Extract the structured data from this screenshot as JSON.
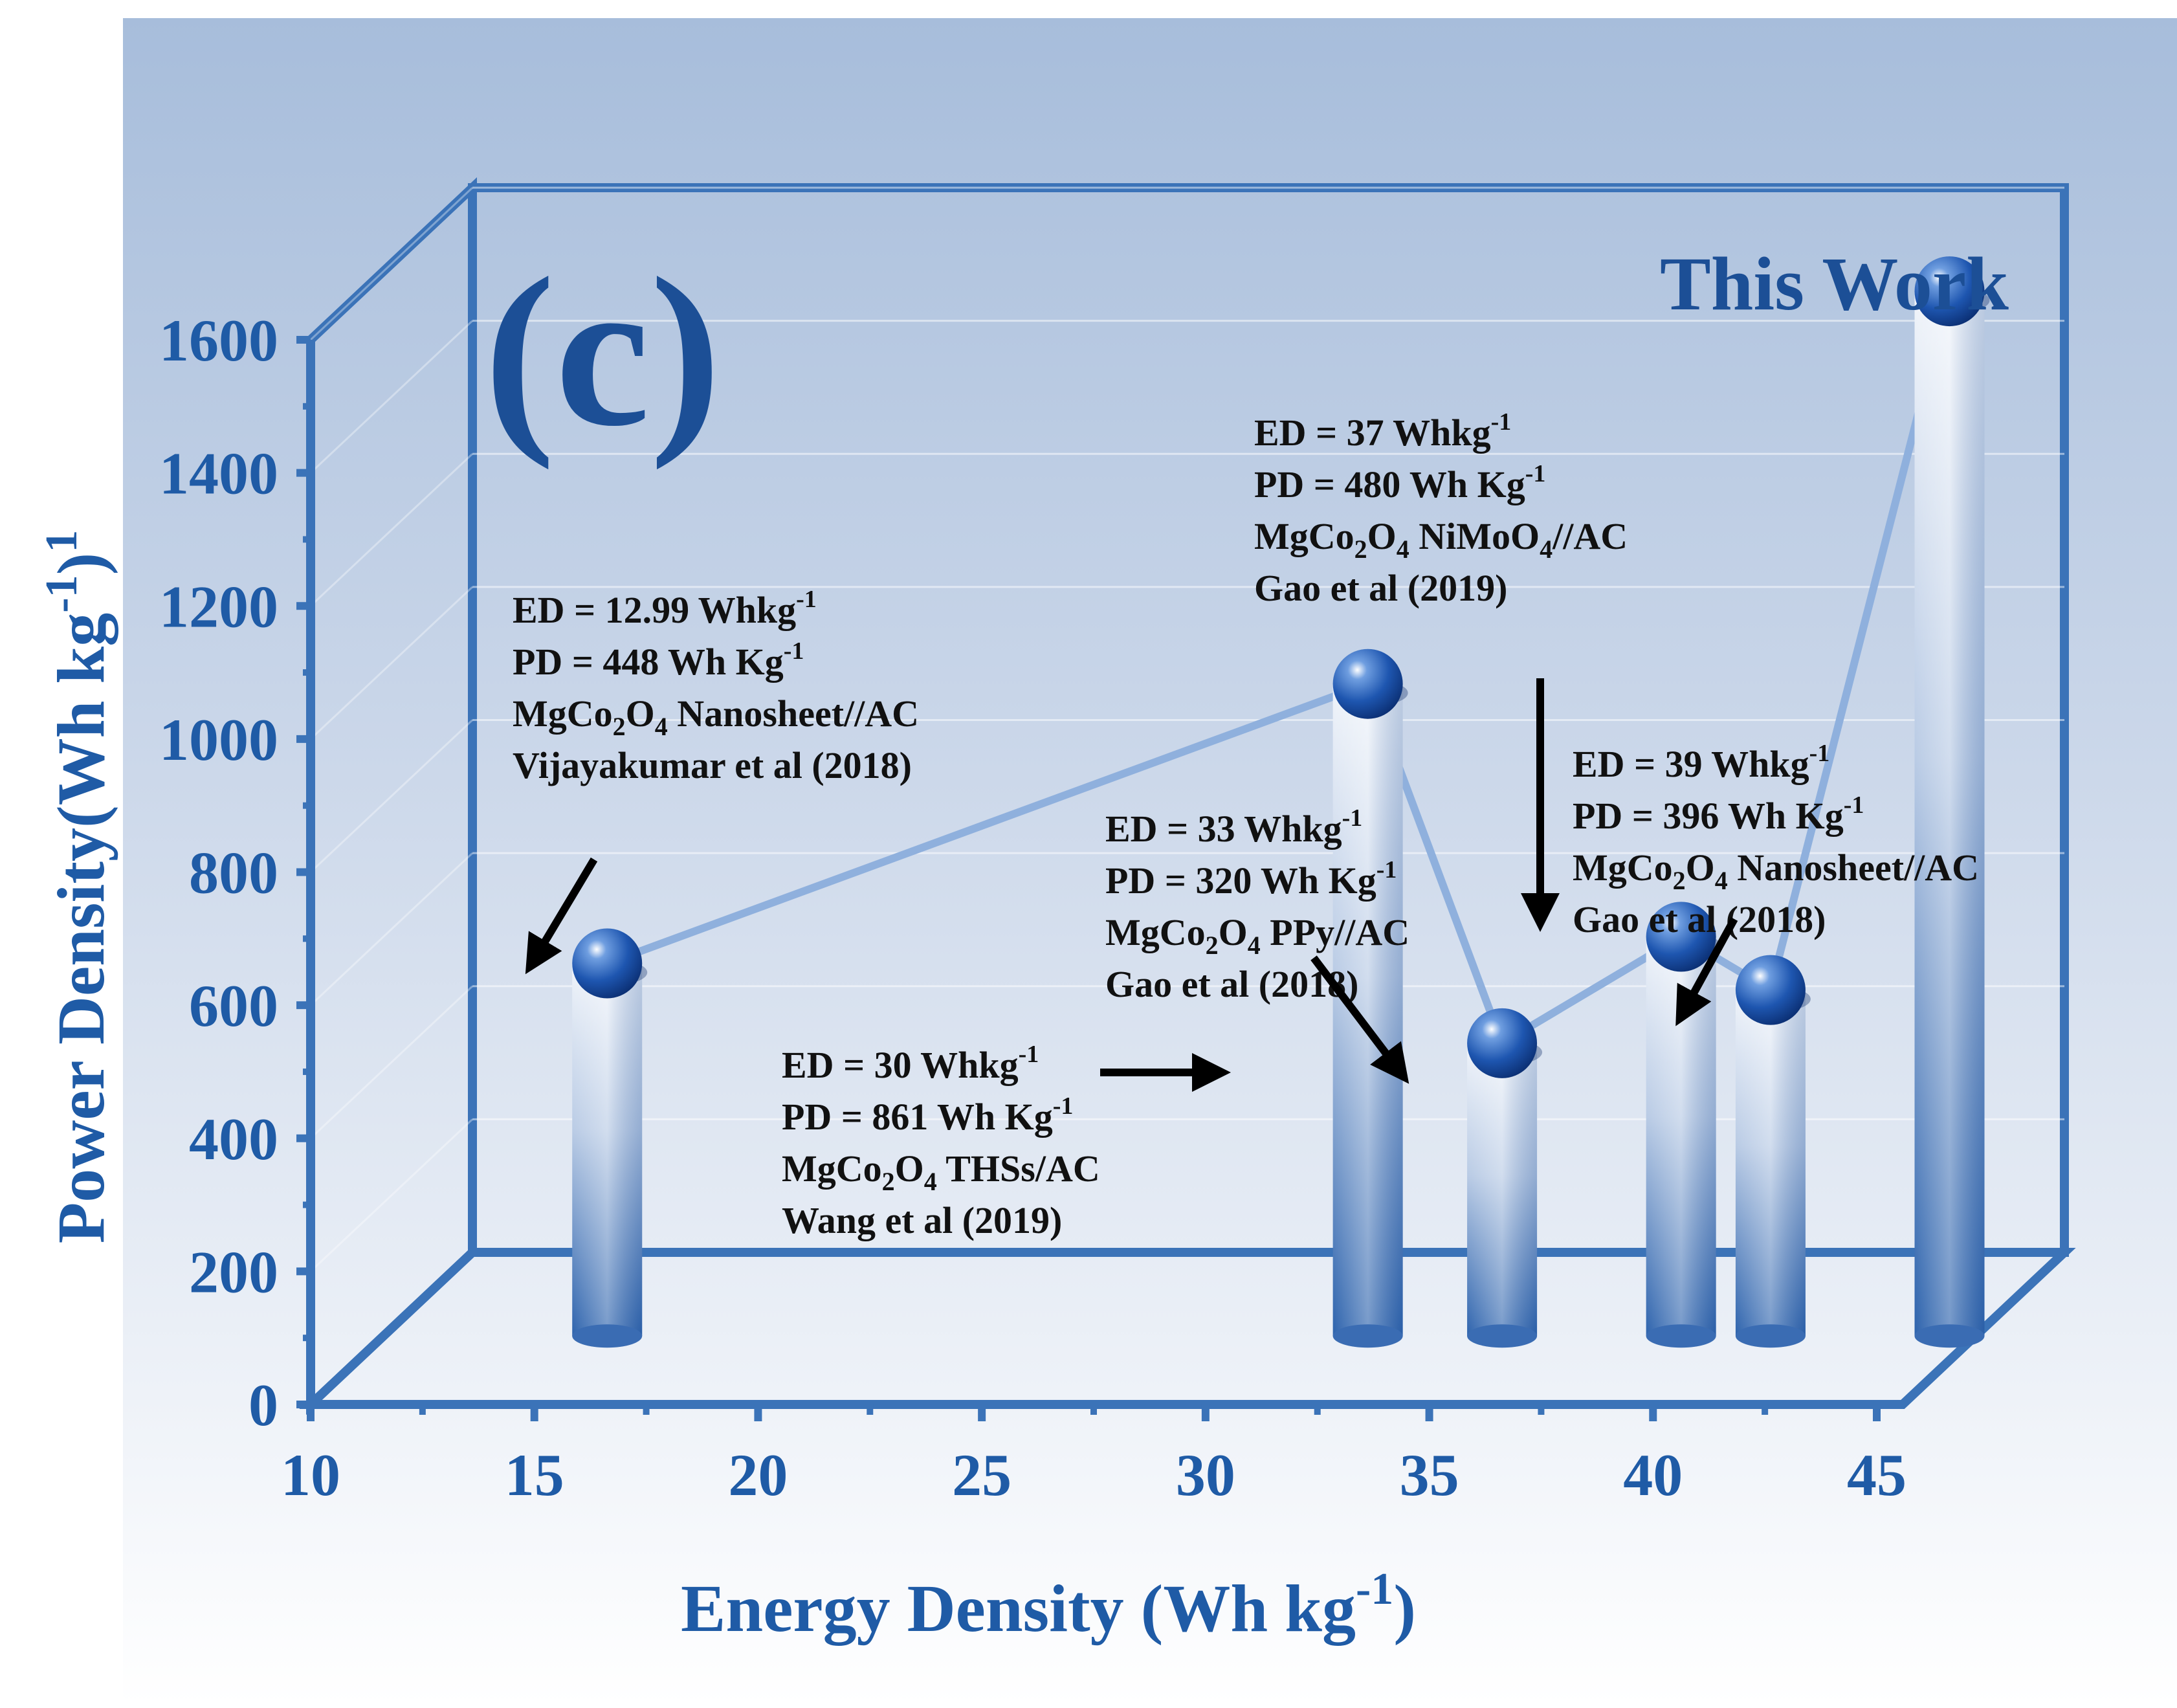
{
  "chart_data": {
    "type": "bar",
    "panel_label": "(c)",
    "xlabel": "Energy Density (Wh kg⁻¹)",
    "ylabel": "Power Density(Wh kg⁻¹)¹",
    "xlim": [
      10,
      45
    ],
    "ylim": [
      0,
      1600
    ],
    "xticks": [
      "10",
      "15",
      "20",
      "25",
      "30",
      "35",
      "40",
      "45"
    ],
    "yticks": [
      "0",
      "200",
      "400",
      "600",
      "800",
      "1000",
      "1200",
      "1400",
      "1600"
    ],
    "series": [
      {
        "name": "Power Density",
        "points": [
          {
            "x": 15,
            "y": 560
          },
          {
            "x": 32,
            "y": 980
          },
          {
            "x": 35,
            "y": 440
          },
          {
            "x": 39,
            "y": 600
          },
          {
            "x": 41,
            "y": 520
          },
          {
            "x": 45,
            "y": 1570
          }
        ]
      }
    ],
    "highlight_label": "This Work",
    "annotations": [
      {
        "id": "vijayakumar",
        "ed_label": "ED = 12.99 Whkg",
        "ed_sup": "-1",
        "pd_label": "PD =  448 Wh Kg",
        "pd_sup": "-1",
        "material_prefix": "MgCo",
        "material_sub1": "2",
        "material_mid": "O",
        "material_sub2": "4",
        "material_suffix": " Nanosheet//AC",
        "ref": "Vijayakumar et al (2018)"
      },
      {
        "id": "wang",
        "ed_label": "ED = 30 Whkg",
        "ed_sup": "-1",
        "pd_label": "PD =  861 Wh Kg",
        "pd_sup": "-1",
        "material_prefix": "MgCo",
        "material_sub1": "2",
        "material_mid": "O",
        "material_sub2": "4",
        "material_suffix": " THSs/AC",
        "ref": "Wang et al (2019)"
      },
      {
        "id": "gao-ppy",
        "ed_label": "ED = 33 Whkg",
        "ed_sup": "-1",
        "pd_label": "PD =  320 Wh Kg",
        "pd_sup": "-1",
        "material_prefix": "MgCo",
        "material_sub1": "2",
        "material_mid": "O",
        "material_sub2": "4",
        "material_suffix": " PPy//AC",
        "ref": "Gao et al (2018)"
      },
      {
        "id": "gao-nimoo4",
        "ed_label": "ED = 37 Whkg",
        "ed_sup": "-1",
        "pd_label": "PD =  480 Wh Kg",
        "pd_sup": "-1",
        "material_prefix": "MgCo",
        "material_sub1": "2",
        "material_mid": "O",
        "material_sub2": "4",
        "material_suffix": " NiMoO",
        "material_sub3": "4",
        "material_suffix2": "//AC",
        "ref": "Gao et al (2019)"
      },
      {
        "id": "gao-nanosheet",
        "ed_label": "ED = 39 Whkg",
        "ed_sup": "-1",
        "pd_label": "PD =  396 Wh Kg",
        "pd_sup": "-1",
        "material_prefix": "MgCo",
        "material_sub1": "2",
        "material_mid": "O",
        "material_sub2": "4",
        "material_suffix": " Nanosheet//AC",
        "ref": "Gao et al (2018)"
      }
    ],
    "colors": {
      "frame": "#3b73b8",
      "axis_text": "#1f5ba6",
      "bar_dark": "#2a5fa8",
      "bar_light": "#e9eef7",
      "line": "#8fb0dd",
      "background_top": "#a8bedb",
      "background_bottom": "#ffffff"
    }
  }
}
